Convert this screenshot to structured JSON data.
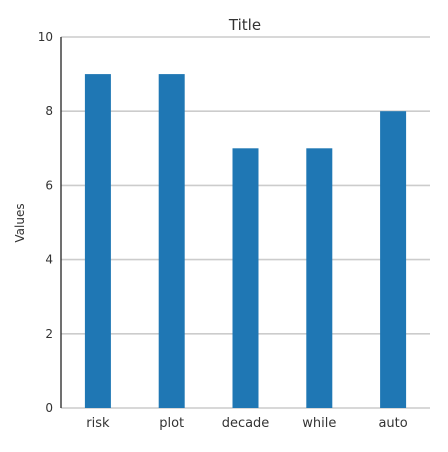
{
  "chart_data": {
    "type": "bar",
    "title": "Title",
    "xlabel": "",
    "ylabel": "Values",
    "categories": [
      "risk",
      "plot",
      "decade",
      "while",
      "auto"
    ],
    "values": [
      9,
      9,
      7,
      7,
      8
    ],
    "ylim": [
      0,
      10
    ],
    "yticks": [
      0,
      2,
      4,
      6,
      8,
      10
    ],
    "grid": true,
    "bar_color": "#1f77b4"
  }
}
